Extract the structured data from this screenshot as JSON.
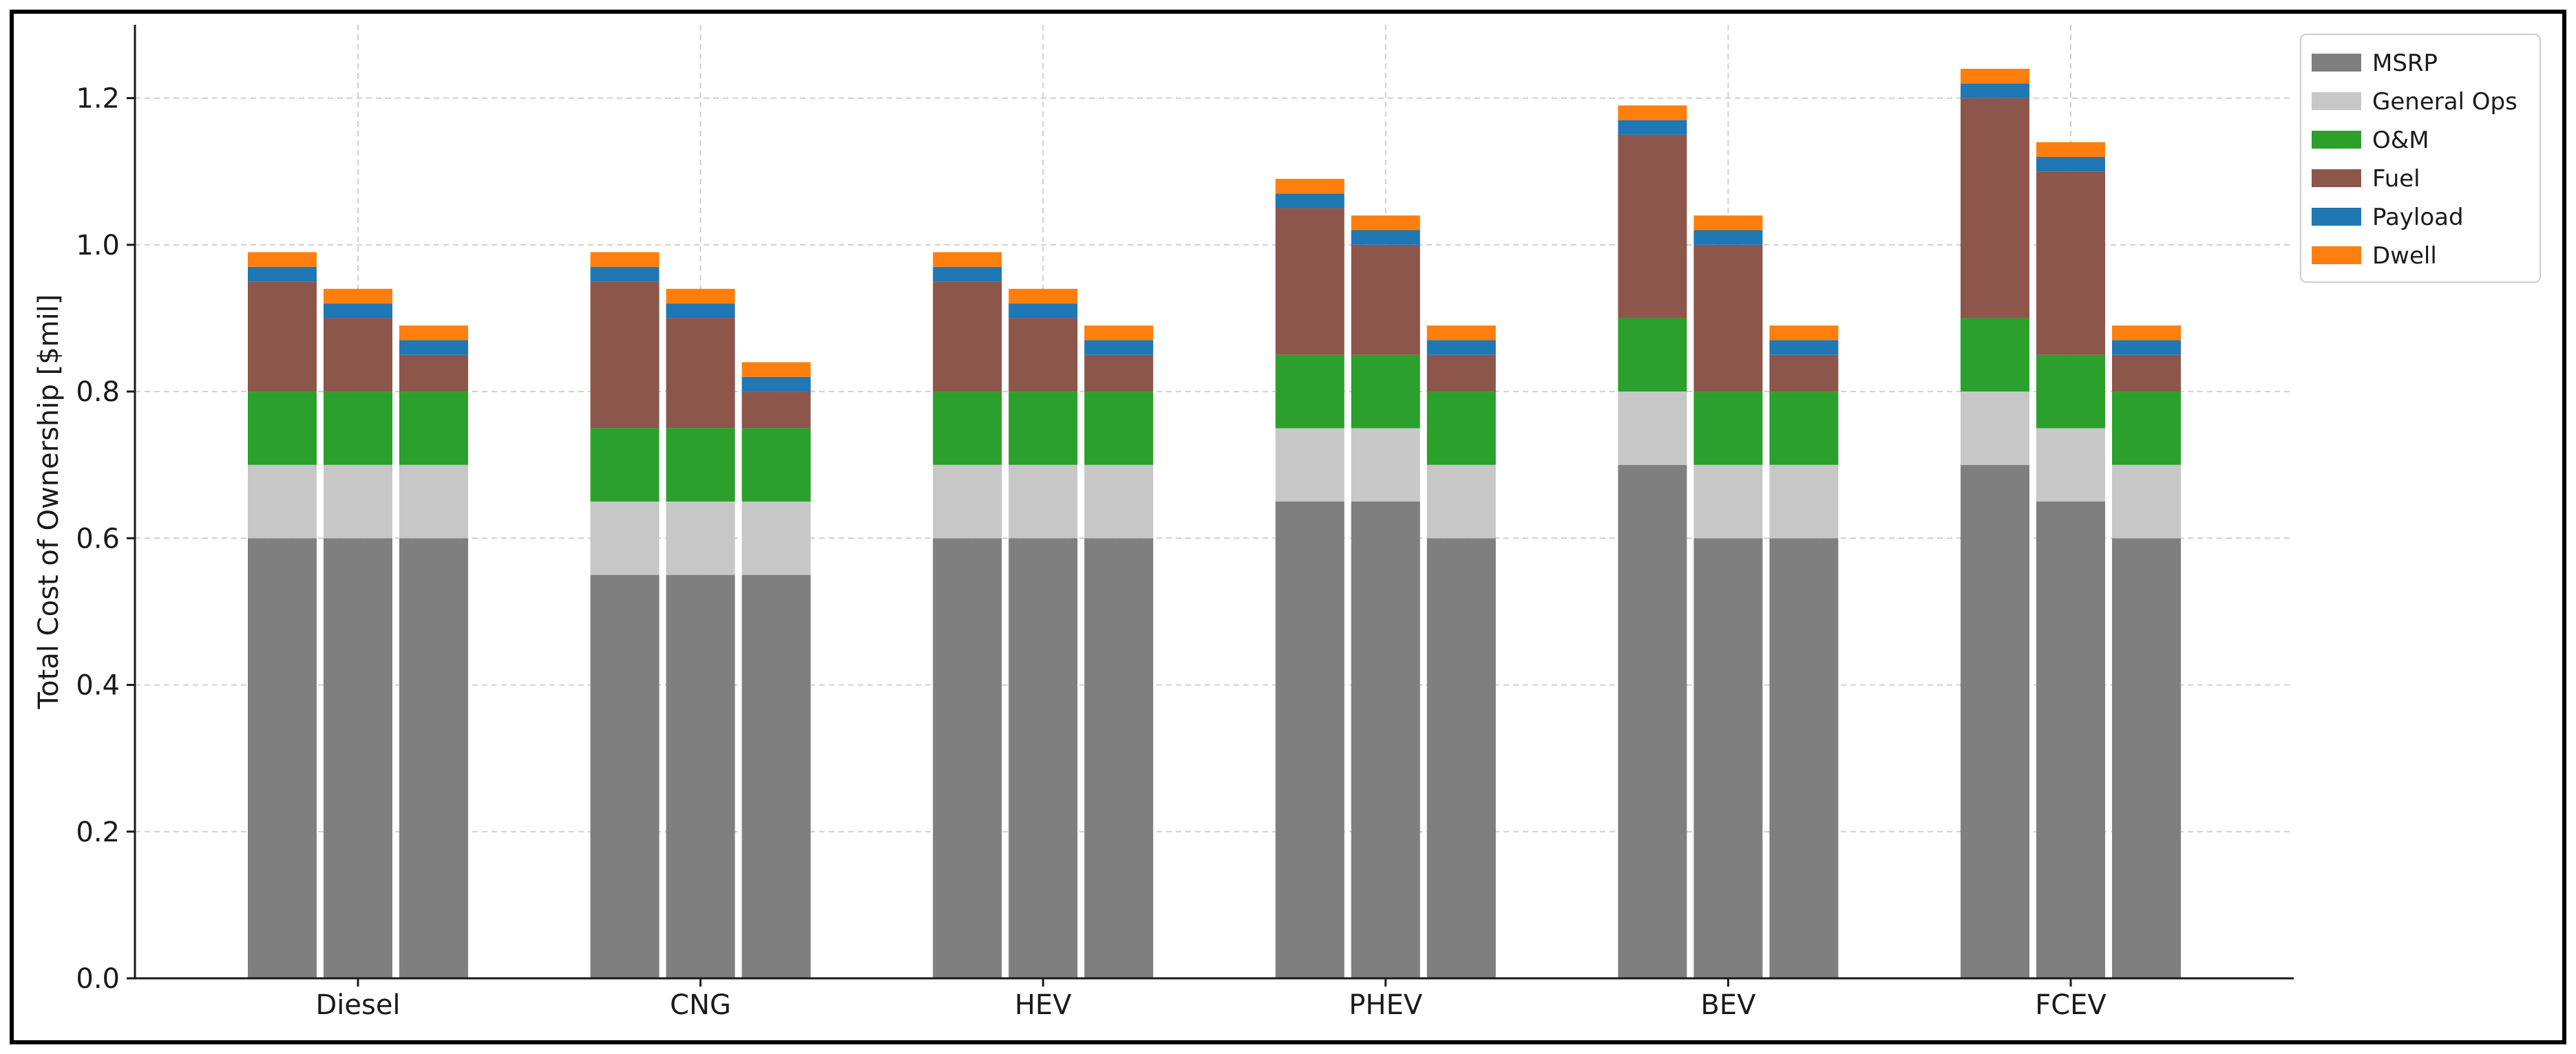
{
  "chart_data": {
    "type": "bar",
    "stacked": true,
    "title": "",
    "xlabel": "",
    "ylabel": "Total Cost of Ownership [$mil]",
    "ylim": [
      0,
      1.3
    ],
    "yticks": [
      "0.0",
      "0.2",
      "0.4",
      "0.6",
      "0.8",
      "1.0",
      "1.2"
    ],
    "grid": true,
    "legend_position": "top-right",
    "categories": [
      "Diesel",
      "CNG",
      "HEV",
      "PHEV",
      "BEV",
      "FCEV"
    ],
    "bars_per_category": 3,
    "series": [
      {
        "name": "MSRP",
        "color": "#7f7f7f",
        "values": [
          [
            0.6,
            0.6,
            0.6
          ],
          [
            0.55,
            0.55,
            0.55
          ],
          [
            0.6,
            0.6,
            0.6
          ],
          [
            0.65,
            0.65,
            0.6
          ],
          [
            0.7,
            0.6,
            0.6
          ],
          [
            0.7,
            0.65,
            0.6
          ]
        ]
      },
      {
        "name": "General Ops",
        "color": "#c7c7c7",
        "values": [
          [
            0.1,
            0.1,
            0.1
          ],
          [
            0.1,
            0.1,
            0.1
          ],
          [
            0.1,
            0.1,
            0.1
          ],
          [
            0.1,
            0.1,
            0.1
          ],
          [
            0.1,
            0.1,
            0.1
          ],
          [
            0.1,
            0.1,
            0.1
          ]
        ]
      },
      {
        "name": "O&M",
        "color": "#2ca02c",
        "values": [
          [
            0.1,
            0.1,
            0.1
          ],
          [
            0.1,
            0.1,
            0.1
          ],
          [
            0.1,
            0.1,
            0.1
          ],
          [
            0.1,
            0.1,
            0.1
          ],
          [
            0.1,
            0.1,
            0.1
          ],
          [
            0.1,
            0.1,
            0.1
          ]
        ]
      },
      {
        "name": "Fuel",
        "color": "#8c564b",
        "values": [
          [
            0.15,
            0.1,
            0.05
          ],
          [
            0.2,
            0.15,
            0.05
          ],
          [
            0.15,
            0.1,
            0.05
          ],
          [
            0.2,
            0.15,
            0.05
          ],
          [
            0.25,
            0.2,
            0.05
          ],
          [
            0.3,
            0.25,
            0.05
          ]
        ]
      },
      {
        "name": "Payload",
        "color": "#1f77b4",
        "values": [
          [
            0.02,
            0.02,
            0.02
          ],
          [
            0.02,
            0.02,
            0.02
          ],
          [
            0.02,
            0.02,
            0.02
          ],
          [
            0.02,
            0.02,
            0.02
          ],
          [
            0.02,
            0.02,
            0.02
          ],
          [
            0.02,
            0.02,
            0.02
          ]
        ]
      },
      {
        "name": "Dwell",
        "color": "#ff7f0e",
        "values": [
          [
            0.02,
            0.02,
            0.02
          ],
          [
            0.02,
            0.02,
            0.02
          ],
          [
            0.02,
            0.02,
            0.02
          ],
          [
            0.02,
            0.02,
            0.02
          ],
          [
            0.02,
            0.02,
            0.02
          ],
          [
            0.02,
            0.02,
            0.02
          ]
        ]
      }
    ]
  }
}
